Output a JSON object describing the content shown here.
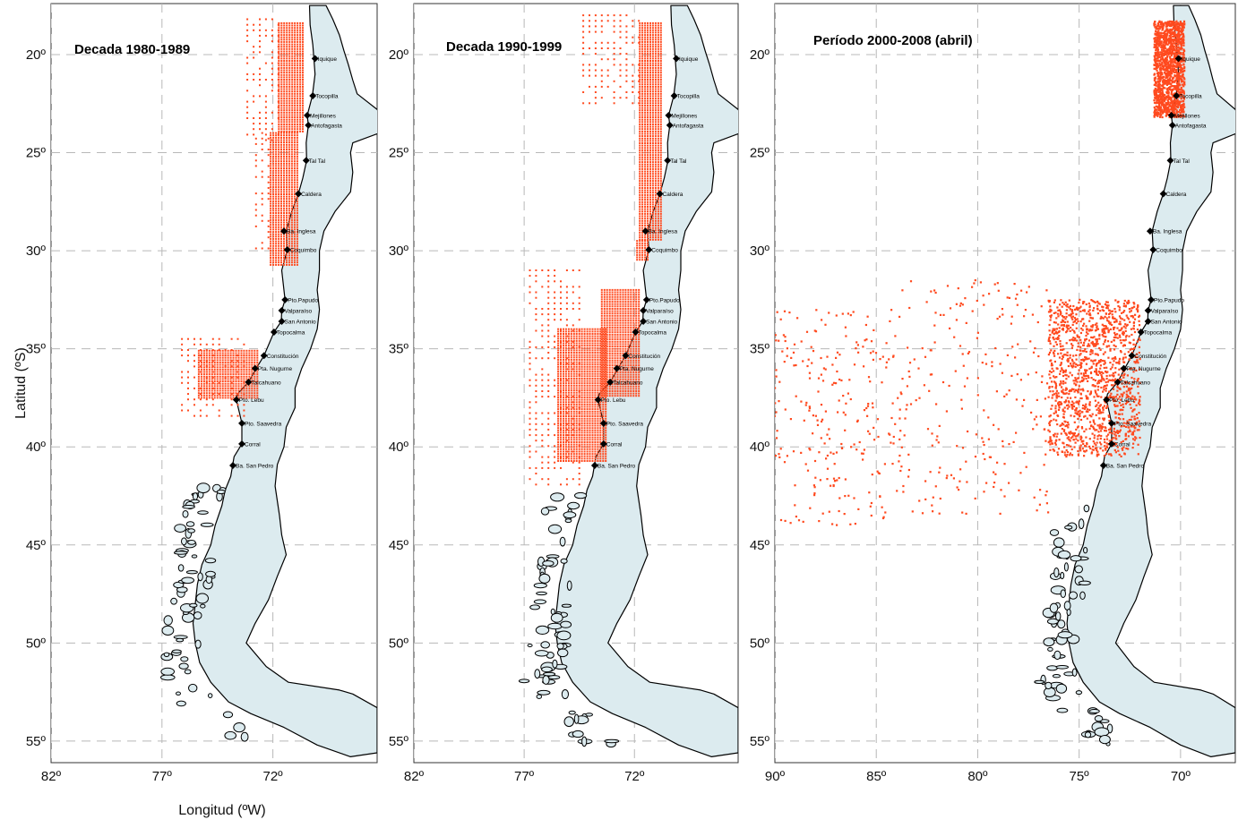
{
  "axes": {
    "ylabel": "Latitud (ºS)",
    "xlabel": "Longitud (ºW)"
  },
  "colors": {
    "catch_points": "#ff4a1f",
    "land": "#dcebef",
    "grid": "#b8b8b8"
  },
  "cities": [
    {
      "name": "Iquique",
      "lat": 20.2,
      "lon": 70.1
    },
    {
      "name": "Tocopilla",
      "lat": 22.1,
      "lon": 70.2
    },
    {
      "name": "Mejillones",
      "lat": 23.1,
      "lon": 70.45
    },
    {
      "name": "Antofagasta",
      "lat": 23.6,
      "lon": 70.4
    },
    {
      "name": "Tal Tal",
      "lat": 25.4,
      "lon": 70.5
    },
    {
      "name": "Caldera",
      "lat": 27.1,
      "lon": 70.85
    },
    {
      "name": "Ba. Inglesa",
      "lat": 29.0,
      "lon": 71.5
    },
    {
      "name": "Coquimbo",
      "lat": 29.95,
      "lon": 71.35
    },
    {
      "name": "Pto.Papudo",
      "lat": 32.5,
      "lon": 71.45
    },
    {
      "name": "Valparaíso",
      "lat": 33.05,
      "lon": 71.6
    },
    {
      "name": "San Antonio",
      "lat": 33.6,
      "lon": 71.6
    },
    {
      "name": "Topocalma",
      "lat": 34.15,
      "lon": 71.95
    },
    {
      "name": "Constitución",
      "lat": 35.35,
      "lon": 72.4
    },
    {
      "name": "Pta. Nugurne",
      "lat": 36.0,
      "lon": 72.8
    },
    {
      "name": "Talcahuano",
      "lat": 36.7,
      "lon": 73.1
    },
    {
      "name": "Pto. Lebu",
      "lat": 37.6,
      "lon": 73.65
    },
    {
      "name": "Pto. Saavedra",
      "lat": 38.8,
      "lon": 73.4
    },
    {
      "name": "Corral",
      "lat": 39.85,
      "lon": 73.4
    },
    {
      "name": "Ba. San Pedro",
      "lat": 40.95,
      "lon": 73.8
    }
  ],
  "panels": [
    {
      "title": "Decada 1980-1989",
      "lon_ticks": [
        "82º",
        "77º",
        "72º"
      ],
      "lat_ticks": [
        "20º",
        "25º",
        "30º",
        "35º",
        "40º",
        "45º",
        "50º",
        "55º"
      ],
      "pattern": "grid-sparse",
      "catch_areas": [
        {
          "lat": [
            18.4,
            24.0
          ],
          "lon": [
            70.65,
            71.75
          ],
          "density": "dense"
        },
        {
          "lat": [
            18.2,
            24.5
          ],
          "lon": [
            71.75,
            73.2
          ],
          "density": "sparse"
        },
        {
          "lat": [
            24.0,
            30.8
          ],
          "lon": [
            70.9,
            72.2
          ],
          "density": "dense"
        },
        {
          "lat": [
            24.0,
            30.0
          ],
          "lon": [
            72.2,
            72.9
          ],
          "density": "sparse"
        },
        {
          "lat": [
            35.1,
            37.5
          ],
          "lon": [
            72.7,
            75.4
          ],
          "density": "dense"
        },
        {
          "lat": [
            34.5,
            38.6
          ],
          "lon": [
            73.3,
            76.3
          ],
          "density": "sparse"
        }
      ]
    },
    {
      "title": "Decada 1990-1999",
      "lon_ticks": [
        "82º",
        "77º",
        "72º"
      ],
      "lat_ticks": [
        "20º",
        "25º",
        "30º",
        "35º",
        "40º",
        "45º",
        "50º",
        "55º"
      ],
      "pattern": "grid-sparse",
      "catch_areas": [
        {
          "lat": [
            18.4,
            29.5
          ],
          "lon": [
            70.8,
            71.8
          ],
          "density": "dense"
        },
        {
          "lat": [
            18.0,
            22.5
          ],
          "lon": [
            71.8,
            74.5
          ],
          "density": "sparse"
        },
        {
          "lat": [
            29.5,
            30.5
          ],
          "lon": [
            71.4,
            72.0
          ],
          "density": "dense"
        },
        {
          "lat": [
            32.0,
            37.5
          ],
          "lon": [
            71.8,
            73.5
          ],
          "density": "dense"
        },
        {
          "lat": [
            34.0,
            40.8
          ],
          "lon": [
            73.3,
            75.5
          ],
          "density": "dense"
        },
        {
          "lat": [
            31.0,
            42.0
          ],
          "lon": [
            74.5,
            77.0
          ],
          "density": "sparse"
        }
      ]
    },
    {
      "title": "Período 2000-2008 (abril)",
      "lon_ticks": [
        "90º",
        "85º",
        "80º",
        "75º",
        "70º"
      ],
      "lat_ticks": [
        "20º",
        "25º",
        "30º",
        "35º",
        "40º",
        "45º",
        "50º",
        "55º"
      ],
      "pattern": "scatter",
      "catch_areas": [
        {
          "lat": [
            18.3,
            23.2
          ],
          "lon": [
            69.8,
            71.3
          ],
          "density": "dense"
        },
        {
          "lat": [
            32.5,
            40.5
          ],
          "lon": [
            72.0,
            76.5
          ],
          "density": "dense"
        },
        {
          "lat": [
            31.5,
            43.5
          ],
          "lon": [
            76.5,
            84.5
          ],
          "density": "sparse"
        },
        {
          "lat": [
            33.0,
            44.0
          ],
          "lon": [
            84.5,
            90.5
          ],
          "density": "sparse"
        }
      ]
    }
  ]
}
